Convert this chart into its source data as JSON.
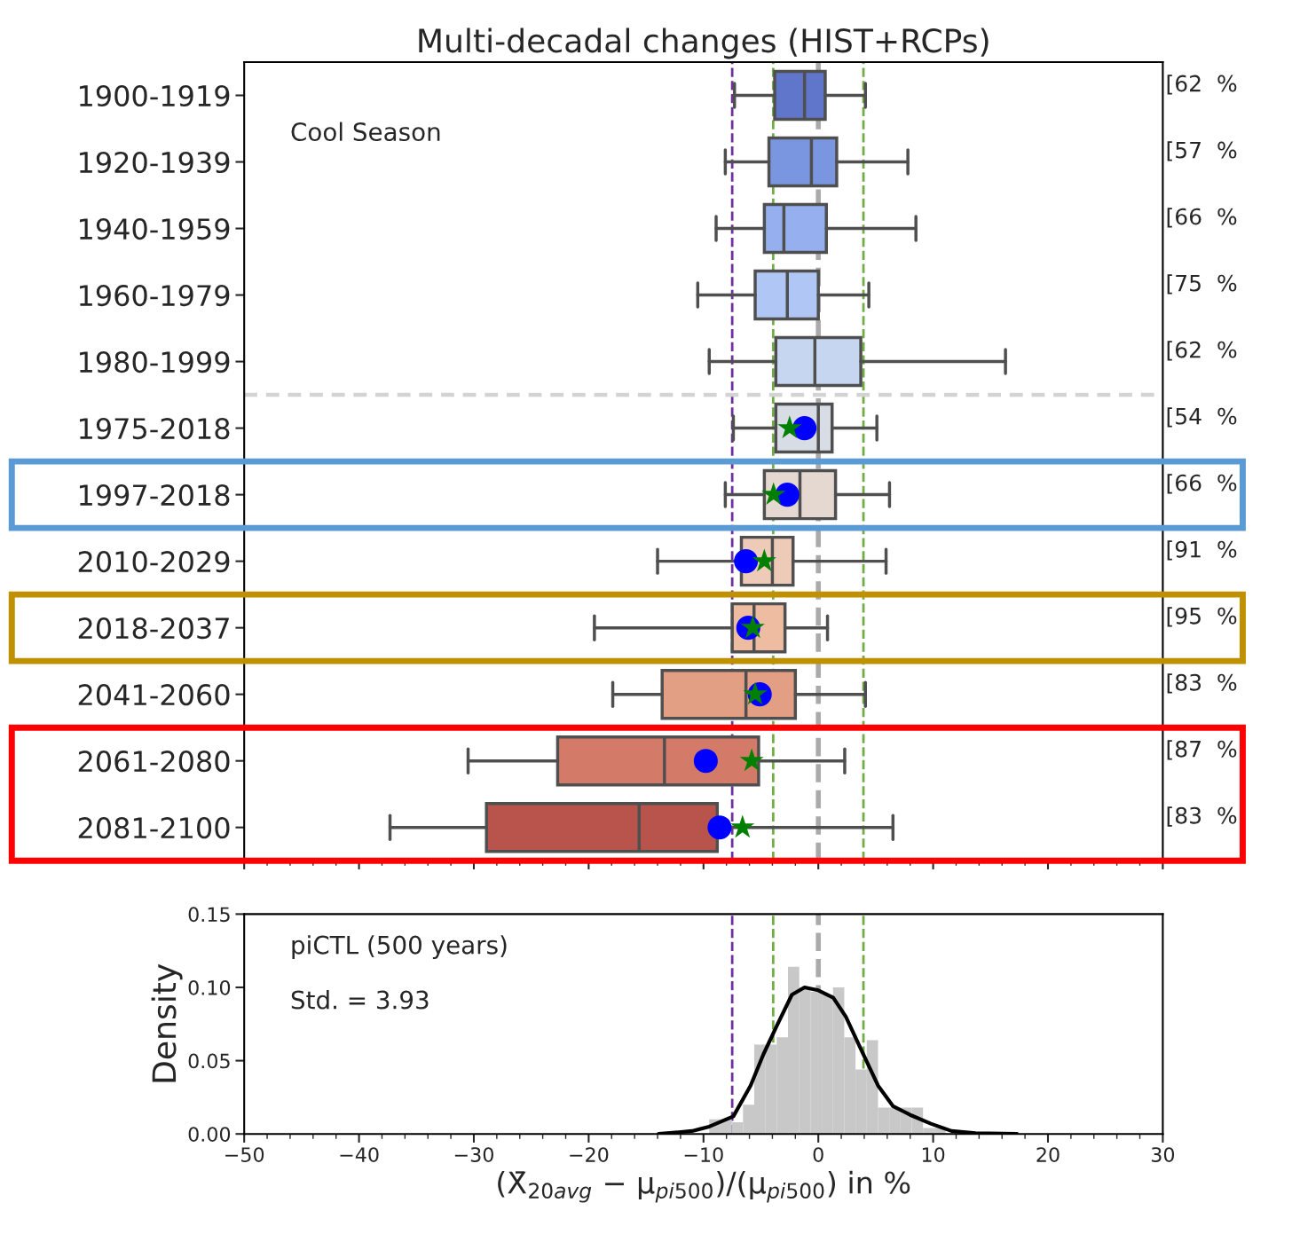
{
  "chart_data": [
    {
      "type": "box",
      "orientation": "horizontal",
      "title": "Multi-decadal changes (HIST+RCPs)",
      "categories": [
        "1900-1919",
        "1920-1939",
        "1940-1959",
        "1960-1979",
        "1980-1999",
        "1975-2018",
        "1997-2018",
        "2010-2029",
        "2018-2037",
        "2041-2060",
        "2061-2080",
        "2081-2100"
      ],
      "boxes": [
        {
          "low": -7.3,
          "q1": -3.8,
          "median": -1.2,
          "q3": 0.6,
          "high": 4.1
        },
        {
          "low": -8.1,
          "q1": -4.3,
          "median": -0.6,
          "q3": 1.6,
          "high": 7.8
        },
        {
          "low": -8.9,
          "q1": -4.7,
          "median": -3.0,
          "q3": 0.7,
          "high": 8.5
        },
        {
          "low": -10.5,
          "q1": -5.5,
          "median": -2.7,
          "q3": 0.0,
          "high": 4.4
        },
        {
          "low": -9.5,
          "q1": -3.7,
          "median": -0.3,
          "q3": 3.7,
          "high": 16.3
        },
        {
          "low": -7.4,
          "q1": -3.7,
          "median": 0.0,
          "q3": 1.2,
          "high": 5.1
        },
        {
          "low": -8.1,
          "q1": -4.7,
          "median": -1.6,
          "q3": 1.5,
          "high": 6.2
        },
        {
          "low": -14.0,
          "q1": -6.7,
          "median": -4.0,
          "q3": -2.2,
          "high": 5.9
        },
        {
          "low": -19.5,
          "q1": -7.5,
          "median": -5.6,
          "q3": -2.9,
          "high": 0.8
        },
        {
          "low": -17.9,
          "q1": -13.6,
          "median": -6.3,
          "q3": -2.0,
          "high": 4.1
        },
        {
          "low": -30.5,
          "q1": -22.7,
          "median": -13.4,
          "q3": -5.2,
          "high": 2.3
        },
        {
          "low": -37.3,
          "q1": -28.9,
          "median": -15.6,
          "q3": -8.8,
          "high": 6.5
        }
      ],
      "colors": [
        "#6076cb",
        "#7b96e0",
        "#96afee",
        "#b0c7f6",
        "#c7d6f0",
        "#d8dce5",
        "#e5d8d1",
        "#eecbb8",
        "#eebca1",
        "#e29f84",
        "#d37b68",
        "#b9544c"
      ],
      "series": [
        {
          "type": "scatter",
          "marker": "circle",
          "color": "#0000ff",
          "values": [
            null,
            null,
            null,
            null,
            null,
            -1.2,
            -2.7,
            -6.3,
            -6.1,
            -5.1,
            -9.8,
            -8.6
          ]
        },
        {
          "type": "scatter",
          "marker": "star",
          "color": "#008000",
          "values": [
            null,
            null,
            null,
            null,
            null,
            -2.5,
            -3.9,
            -4.7,
            -5.7,
            -5.5,
            -5.8,
            -6.6
          ]
        }
      ],
      "value_labels": [
        "[62  %",
        "[57  %",
        "[66  %",
        "[75  %",
        "[62  %",
        "[54  %",
        "[66  %",
        "[91  %",
        "[95  %",
        "[83  %",
        "[87  %",
        "[83  %"
      ],
      "ref_lines": [
        {
          "axis": "x",
          "value": -7.5,
          "color": "#7030a0",
          "line_style": "dashed"
        },
        {
          "axis": "x",
          "value": -3.93,
          "color": "#70ad47",
          "line_style": "dashed"
        },
        {
          "axis": "x",
          "value": 3.93,
          "color": "#70ad47",
          "line_style": "dashed"
        },
        {
          "axis": "x",
          "value": 0,
          "color": "#aaaaaa",
          "line_style": "dashed"
        }
      ],
      "annotations": [
        "Cool Season"
      ],
      "xlim": [
        -50,
        30
      ],
      "xticks": [
        -50,
        -40,
        -30,
        -20,
        -10,
        0,
        10,
        20,
        30
      ],
      "tick_labels": "y"
    },
    {
      "type": "histogram",
      "color": "#c8c8c8",
      "bins": [
        -9.5,
        -8.52,
        -7.54,
        -6.56,
        -5.58,
        -4.6,
        -3.62,
        -2.64,
        -1.66,
        -0.68,
        0.3,
        1.28,
        2.26,
        3.24,
        4.22,
        5.2,
        6.18,
        7.16,
        8.14,
        9.12,
        10.1,
        11.08
      ],
      "values": [
        0.01,
        0.01,
        0.008,
        0.02,
        0.061,
        0.061,
        0.066,
        0.114,
        0.1,
        0.097,
        0.095,
        0.1,
        0.066,
        0.044,
        0.064,
        0.018,
        0.018,
        0.018,
        0.018,
        0.004,
        0.004
      ],
      "series": [
        {
          "type": "line",
          "color": "#000000",
          "x": [
            -13.9,
            -11,
            -9.5,
            -7.4,
            -5.9,
            -4.8,
            -3.6,
            -2.3,
            -1.2,
            0,
            1.3,
            2.4,
            3.7,
            5.2,
            6.5,
            8.0,
            9.8,
            11.6,
            13.7,
            17.3
          ],
          "values": [
            0.0,
            0.002,
            0.005,
            0.012,
            0.033,
            0.054,
            0.074,
            0.095,
            0.1,
            0.098,
            0.093,
            0.08,
            0.058,
            0.033,
            0.019,
            0.013,
            0.007,
            0.002,
            0.0005,
            0.0
          ]
        }
      ],
      "ref_lines": [
        {
          "axis": "x",
          "value": -7.5,
          "color": "#7030a0",
          "line_style": "dashed"
        },
        {
          "axis": "x",
          "value": -3.93,
          "color": "#70ad47",
          "line_style": "dashed"
        },
        {
          "axis": "x",
          "value": 3.93,
          "color": "#70ad47",
          "line_style": "dashed"
        },
        {
          "axis": "x",
          "value": 0,
          "color": "#aaaaaa",
          "line_style": "dashed"
        }
      ],
      "annotations": [
        "piCTL (500 years)",
        "Std. = 3.93"
      ],
      "xlabel": "(X̄$_{20avg}$ − μ$_{pi500}$)/(μ$_{pi500}$) in %",
      "ylabel": "Density",
      "xlim": [
        -50,
        30
      ],
      "xticks": [
        {
          "value": -50,
          "label": "−50"
        },
        {
          "value": -40,
          "label": "−40"
        },
        {
          "value": -30,
          "label": "−30"
        },
        {
          "value": -20,
          "label": "−20"
        },
        {
          "value": -10,
          "label": "−10"
        },
        0,
        10,
        20,
        30
      ],
      "ylim": [
        0,
        0.15
      ],
      "yticks": [
        {
          "value": 0,
          "label": "0.00"
        },
        {
          "value": 0.05,
          "label": "0.05"
        },
        {
          "value": 0.1,
          "label": "0.10"
        },
        {
          "value": 0.15,
          "label": "0.15"
        }
      ]
    }
  ]
}
